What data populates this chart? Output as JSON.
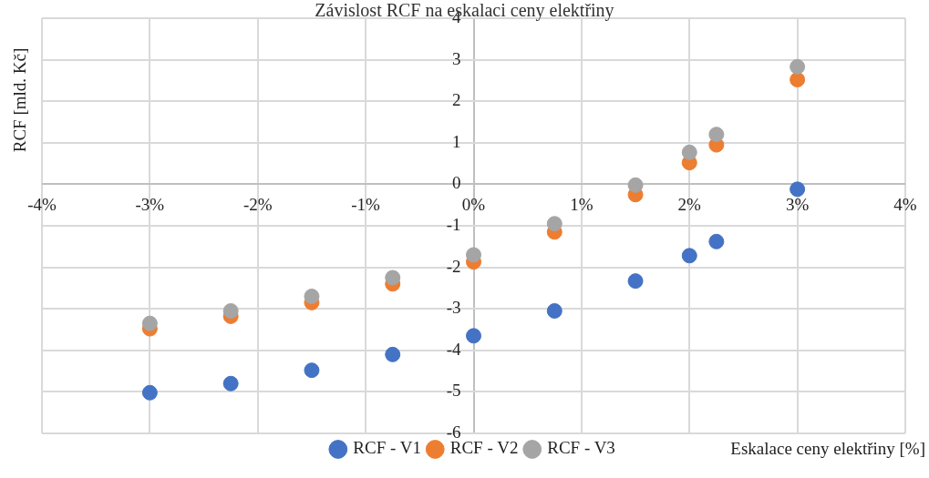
{
  "chart_data": {
    "type": "scatter",
    "title": "Závislost RCF na eskalaci ceny elektřiny",
    "xlabel": "Eskalace ceny elektřiny [%]",
    "ylabel": "RCF [mld. Kč]",
    "x": [
      -3,
      -2.25,
      -1.5,
      -0.75,
      0,
      0.75,
      1.5,
      2,
      2.25,
      3
    ],
    "series": [
      {
        "name": "RCF - V1",
        "color": "#4472c4",
        "values": [
          -5.02,
          -4.8,
          -4.48,
          -4.1,
          -3.65,
          -3.05,
          -2.33,
          -1.72,
          -1.38,
          -0.12
        ]
      },
      {
        "name": "RCF - V2",
        "color": "#ed7d31",
        "values": [
          -3.48,
          -3.18,
          -2.85,
          -2.4,
          -1.87,
          -1.15,
          -0.25,
          0.52,
          0.95,
          2.52
        ]
      },
      {
        "name": "RCF - V3",
        "color": "#a5a5a5",
        "values": [
          -3.35,
          -3.05,
          -2.7,
          -2.25,
          -1.7,
          -0.95,
          -0.02,
          0.77,
          1.2,
          2.83
        ]
      }
    ],
    "xlim": [
      -4,
      4
    ],
    "xticks": [
      {
        "value": -4,
        "label": "-4%"
      },
      {
        "value": -3,
        "label": "-3%"
      },
      {
        "value": -2,
        "label": "-2%"
      },
      {
        "value": -1,
        "label": "-1%"
      },
      {
        "value": 0,
        "label": "0%"
      },
      {
        "value": 1,
        "label": "1%"
      },
      {
        "value": 2,
        "label": "2%"
      },
      {
        "value": 3,
        "label": "3%"
      },
      {
        "value": 4,
        "label": "4%"
      }
    ],
    "ylim": [
      -6,
      4
    ],
    "yticks": [
      -6,
      -5,
      -4,
      -3,
      -2,
      -1,
      0,
      1,
      2,
      3,
      4
    ],
    "grid": true,
    "legend": "bottom",
    "marker": "circle"
  }
}
